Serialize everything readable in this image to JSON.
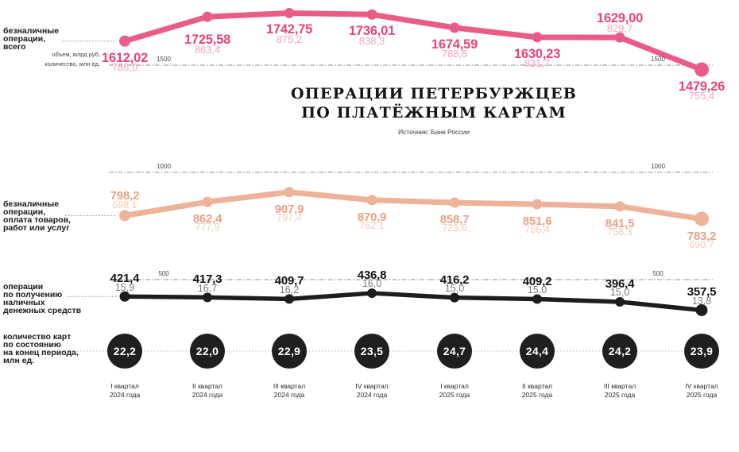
{
  "title": {
    "line1": "ОПЕРАЦИИ ПЕТЕРБУРЖЦЕВ",
    "line2": "ПО ПЛАТЁЖНЫМ КАРТАМ",
    "source": "Источник: Банк России"
  },
  "axis": {
    "unit_volume": "объем, млрд руб.",
    "unit_count": "количество, млн ед."
  },
  "chart_data": {
    "type": "line",
    "grid": "dashed horizontal gridlines, labels at both ends",
    "legend_position": "left of each series",
    "ylim": [
      0,
      1800
    ],
    "categories": [
      [
        "I квартал",
        "2024 года"
      ],
      [
        "II квартал",
        "2024 года"
      ],
      [
        "III квартал",
        "2024 года"
      ],
      [
        "IV квартал",
        "2024 года"
      ],
      [
        "I квартал",
        "2025 года"
      ],
      [
        "II квартал",
        "2025 года"
      ],
      [
        "III квартал",
        "2025 года"
      ],
      [
        "IV квартал",
        "2025 года"
      ]
    ],
    "gridlines": [
      {
        "value": 1500,
        "label": "1500"
      },
      {
        "value": 1000,
        "label": "1000"
      },
      {
        "value": 500,
        "label": "500"
      }
    ],
    "series": [
      {
        "name": "безналичные операции, всего",
        "label_lines": [
          "безналичные",
          "операции,",
          "всего"
        ],
        "volume_values": [
          1612.02,
          1725.58,
          1742.75,
          1736.01,
          1674.59,
          1630.23,
          1629.0,
          1479.26
        ],
        "volume_labels": [
          "1612,02",
          "1725,58",
          "1742,75",
          "1736,01",
          "1674,59",
          "1630,23",
          "1629,00",
          "1479,26"
        ],
        "count_labels": [
          "786,0",
          "863,4",
          "875,2",
          "838,3",
          "788,8",
          "831,7",
          "829,7",
          "755,4"
        ],
        "label_side": [
          "below",
          "below-far",
          "below",
          "below",
          "below",
          "below",
          "above",
          "below"
        ],
        "line_color": "#ea5c85",
        "value_color": "#e8457a",
        "count_color": "#f5a3b8"
      },
      {
        "name": "безналичные операции, оплата товаров, работ или услуг",
        "label_lines": [
          "безналичные",
          "операции,",
          "оплата товаров,",
          "работ или услуг"
        ],
        "volume_values": [
          798.2,
          862.4,
          907.9,
          870.9,
          858.7,
          851.6,
          841.5,
          783.2
        ],
        "volume_labels": [
          "798,2",
          "862,4",
          "907,9",
          "870,9",
          "858,7",
          "851,6",
          "841,5",
          "783,2"
        ],
        "count_labels": [
          "698,1",
          "777,9",
          "797,4",
          "762,1",
          "723,6",
          "766,4",
          "758,3",
          "690,7"
        ],
        "label_side": [
          "above",
          "below",
          "below",
          "below",
          "below",
          "below",
          "below",
          "below"
        ],
        "line_color": "#eeb298",
        "value_color": "#eba185",
        "count_color": "#f5cab4"
      },
      {
        "name": "операции по получению наличных денежных средств",
        "label_lines": [
          "операции",
          "по получению",
          "наличных",
          "денежных средств"
        ],
        "volume_values": [
          421.4,
          417.3,
          409.7,
          436.8,
          416.2,
          409.2,
          396.4,
          357.5
        ],
        "volume_labels": [
          "421,4",
          "417,3",
          "409,7",
          "436,8",
          "416,2",
          "409,2",
          "396,4",
          "357,5"
        ],
        "count_labels": [
          "15,9",
          "16,7",
          "16,2",
          "16,0",
          "15,0",
          "15,0",
          "15,0",
          "13,8"
        ],
        "label_side": [
          "above",
          "above",
          "above",
          "above",
          "above",
          "above",
          "above",
          "above"
        ],
        "line_color": "#1d1d1d",
        "value_color": "#121212",
        "count_color": "#7b7b7b"
      }
    ],
    "cards": {
      "name": "количество карт по состоянию на конец периода, млн ед.",
      "label_lines": [
        "количество карт",
        "по состоянию",
        "на конец периода,",
        "млн ед."
      ],
      "values": [
        "22,2",
        "22,0",
        "22,9",
        "23,5",
        "24,7",
        "24,4",
        "24,2",
        "23,9"
      ],
      "fill_color": "#1f1f1f",
      "value_color": "#ffffff"
    }
  }
}
